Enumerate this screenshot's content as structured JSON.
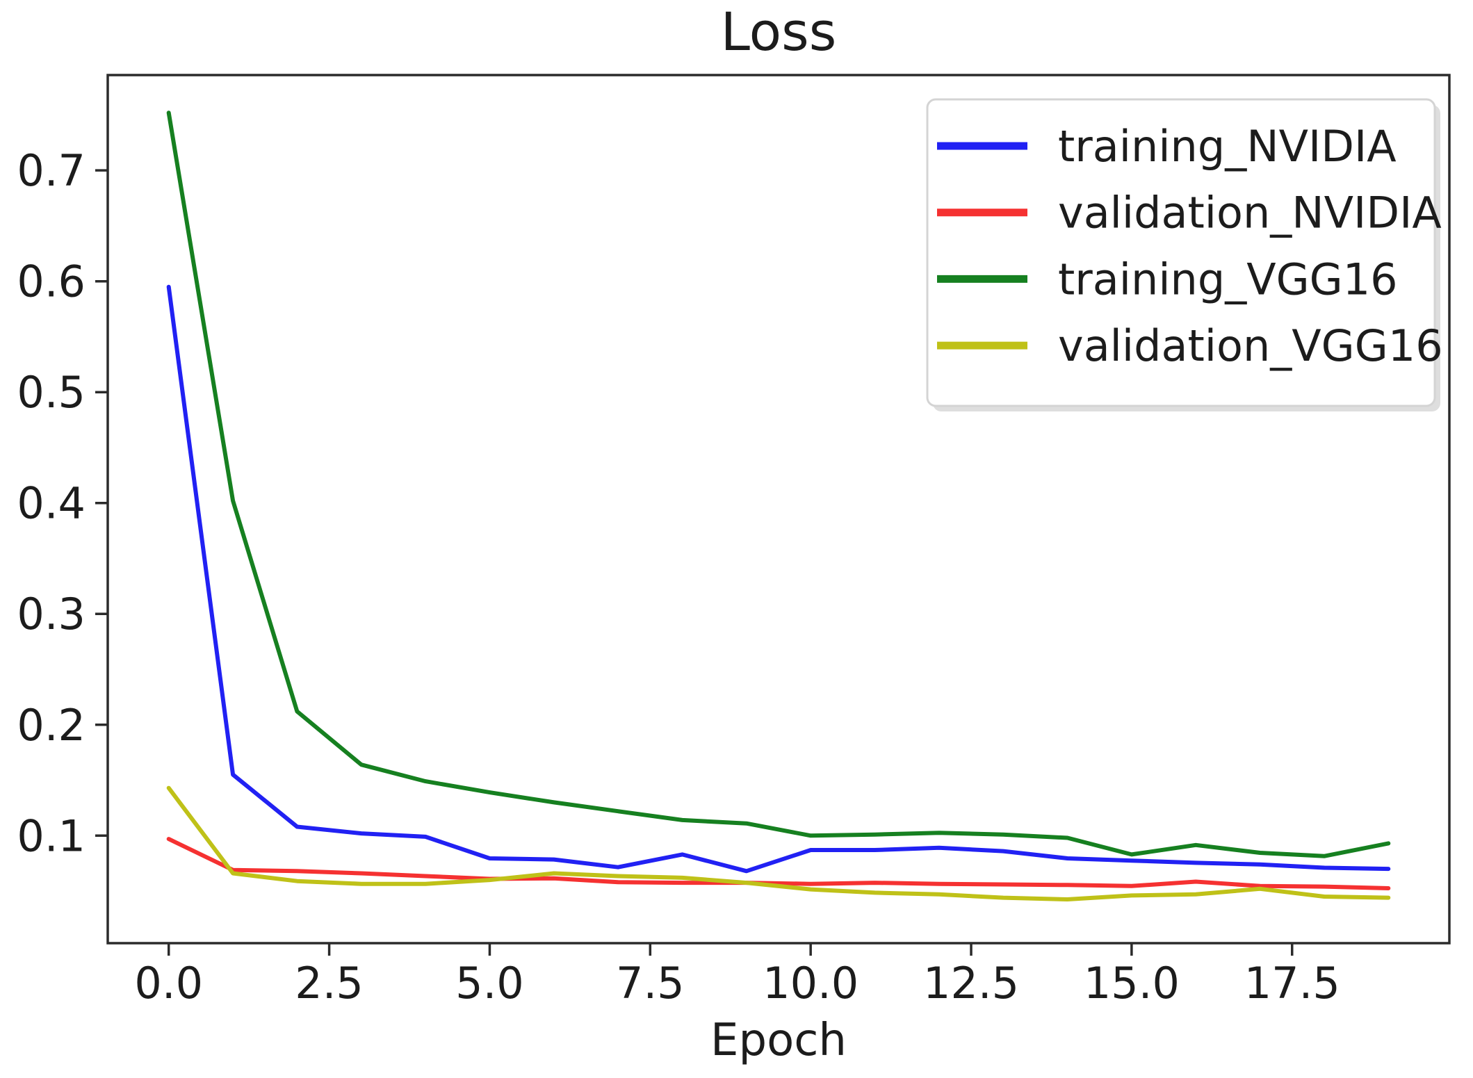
{
  "figure": {
    "background": "#ffffff",
    "axis_color": "#2b2b2b",
    "text_color": "#1c1c1c",
    "legend_border_color": "#d4d4d4",
    "legend_shadow_color": "#dedede",
    "legend_fill": "#ffffff"
  },
  "chart_data": {
    "type": "line",
    "title": "Loss",
    "xlabel": "Epoch",
    "ylabel": "",
    "x": [
      0,
      1,
      2,
      3,
      4,
      5,
      6,
      7,
      8,
      9,
      10,
      11,
      12,
      13,
      14,
      15,
      16,
      17,
      18,
      19
    ],
    "series": [
      {
        "name": "training_NVIDIA",
        "color": "#2121f3",
        "values": [
          0.595,
          0.155,
          0.108,
          0.102,
          0.099,
          0.0795,
          0.0785,
          0.0715,
          0.083,
          0.068,
          0.087,
          0.087,
          0.089,
          0.086,
          0.0795,
          0.0775,
          0.0755,
          0.074,
          0.071,
          0.07
        ]
      },
      {
        "name": "validation_NVIDIA",
        "color": "#f53131",
        "values": [
          0.097,
          0.069,
          0.068,
          0.066,
          0.0635,
          0.061,
          0.0615,
          0.058,
          0.0575,
          0.0575,
          0.0565,
          0.0575,
          0.0565,
          0.056,
          0.0555,
          0.0545,
          0.0585,
          0.0545,
          0.054,
          0.0525
        ]
      },
      {
        "name": "training_VGG16",
        "color": "#168020",
        "values": [
          0.752,
          0.402,
          0.212,
          0.164,
          0.149,
          0.139,
          0.13,
          0.122,
          0.114,
          0.111,
          0.1,
          0.101,
          0.1025,
          0.101,
          0.098,
          0.083,
          0.0915,
          0.0845,
          0.0815,
          0.093
        ]
      },
      {
        "name": "validation_VGG16",
        "color": "#bfc118",
        "values": [
          0.143,
          0.066,
          0.059,
          0.0565,
          0.0565,
          0.06,
          0.066,
          0.0635,
          0.062,
          0.0575,
          0.0515,
          0.0485,
          0.047,
          0.044,
          0.0425,
          0.046,
          0.047,
          0.052,
          0.045,
          0.044
        ]
      }
    ],
    "xlim": [
      -0.95,
      19.95
    ],
    "ylim": [
      0.003,
      0.786
    ],
    "xticks": {
      "values": [
        0,
        2.5,
        5,
        7.5,
        10,
        12.5,
        15,
        17.5
      ],
      "labels": [
        "0.0",
        "2.5",
        "5.0",
        "7.5",
        "10.0",
        "12.5",
        "15.0",
        "17.5"
      ]
    },
    "yticks": {
      "values": [
        0.1,
        0.2,
        0.3,
        0.4,
        0.5,
        0.6,
        0.7
      ],
      "labels": [
        "0.1",
        "0.2",
        "0.3",
        "0.4",
        "0.5",
        "0.6",
        "0.7"
      ]
    },
    "grid": false,
    "legend": {
      "position": "upper right",
      "entries": [
        "training_NVIDIA",
        "validation_NVIDIA",
        "training_VGG16",
        "validation_VGG16"
      ]
    }
  }
}
